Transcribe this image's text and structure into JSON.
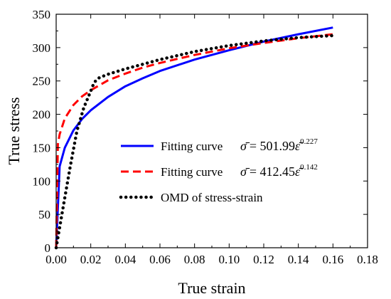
{
  "chart_data": {
    "type": "line",
    "xlabel": "True strain",
    "ylabel": "True stress",
    "xlim": [
      0,
      0.18
    ],
    "ylim": [
      0,
      350
    ],
    "x_ticks": [
      "0.00",
      "0.02",
      "0.04",
      "0.06",
      "0.08",
      "0.10",
      "0.12",
      "0.14",
      "0.16",
      "0.18"
    ],
    "y_ticks": [
      "0",
      "50",
      "100",
      "150",
      "200",
      "250",
      "300",
      "350"
    ],
    "grid": false,
    "legend_position": "center-right",
    "series": [
      {
        "name": "Fitting curve",
        "equation": {
          "lhs": "σ̄",
          "coef": "= 501.99",
          "base": "ε̄",
          "exponent": "0.227"
        },
        "color": "#0000ff",
        "style": "solid",
        "x": [
          0.0,
          0.002,
          0.005,
          0.01,
          0.015,
          0.02,
          0.03,
          0.04,
          0.05,
          0.06,
          0.08,
          0.1,
          0.12,
          0.14,
          0.16
        ],
        "y": [
          0,
          122,
          150,
          176,
          193,
          206,
          226,
          242,
          254,
          265,
          282,
          296,
          309,
          320,
          330
        ]
      },
      {
        "name": "Fitting curve",
        "equation": {
          "lhs": "σ̄",
          "coef": "= 412.45",
          "base": "ε̄",
          "exponent": "0.142"
        },
        "color": "#ff0000",
        "style": "dashed",
        "x": [
          0.0,
          0.001,
          0.002,
          0.005,
          0.01,
          0.015,
          0.02,
          0.03,
          0.04,
          0.05,
          0.06,
          0.08,
          0.1,
          0.12,
          0.14,
          0.16
        ],
        "y": [
          0,
          155,
          170,
          194,
          214,
          227,
          236,
          251,
          261,
          270,
          277,
          289,
          299,
          307,
          314,
          320
        ]
      },
      {
        "name": "OMD of stress-strain",
        "color": "#000000",
        "style": "dotted",
        "x": [
          0.0,
          0.004,
          0.008,
          0.012,
          0.016,
          0.02,
          0.022,
          0.025,
          0.03,
          0.04,
          0.05,
          0.06,
          0.08,
          0.1,
          0.12,
          0.14,
          0.16
        ],
        "y": [
          0,
          60,
          120,
          175,
          210,
          235,
          248,
          255,
          260,
          268,
          275,
          282,
          294,
          303,
          310,
          315,
          318
        ]
      }
    ]
  }
}
